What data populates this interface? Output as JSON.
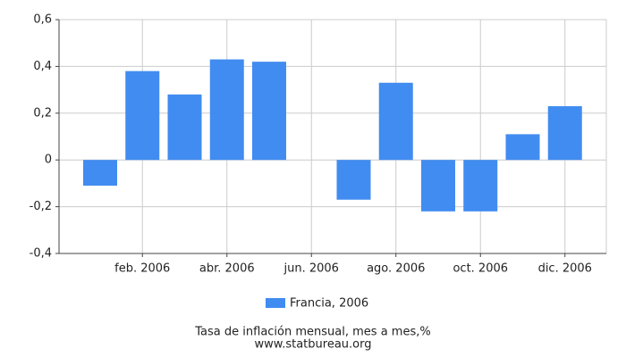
{
  "chart_data": {
    "type": "bar",
    "title": "Tasa de inflación mensual, mes a mes,%",
    "source": "www.statbureau.org",
    "categories": [
      null,
      "feb. 2006",
      null,
      "abr. 2006",
      null,
      "jun. 2006",
      null,
      "ago. 2006",
      null,
      "oct. 2006",
      null,
      "dic. 2006"
    ],
    "series": [
      {
        "name": "Francia, 2006",
        "color": "#418cf0",
        "values": [
          -0.11,
          0.38,
          0.28,
          0.43,
          0.42,
          0,
          -0.17,
          0.33,
          -0.22,
          -0.22,
          0.11,
          0.23
        ]
      }
    ],
    "ylim": [
      -0.4,
      0.6
    ],
    "yticks": [
      {
        "value": -0.4,
        "label": "-0,4"
      },
      {
        "value": -0.2,
        "label": "-0,2"
      },
      0,
      {
        "value": 0.2,
        "label": "0,2"
      },
      {
        "value": 0.4,
        "label": "0,4"
      },
      {
        "value": 0.6,
        "label": "0,6"
      }
    ],
    "grid": true,
    "legend": "bottom"
  }
}
